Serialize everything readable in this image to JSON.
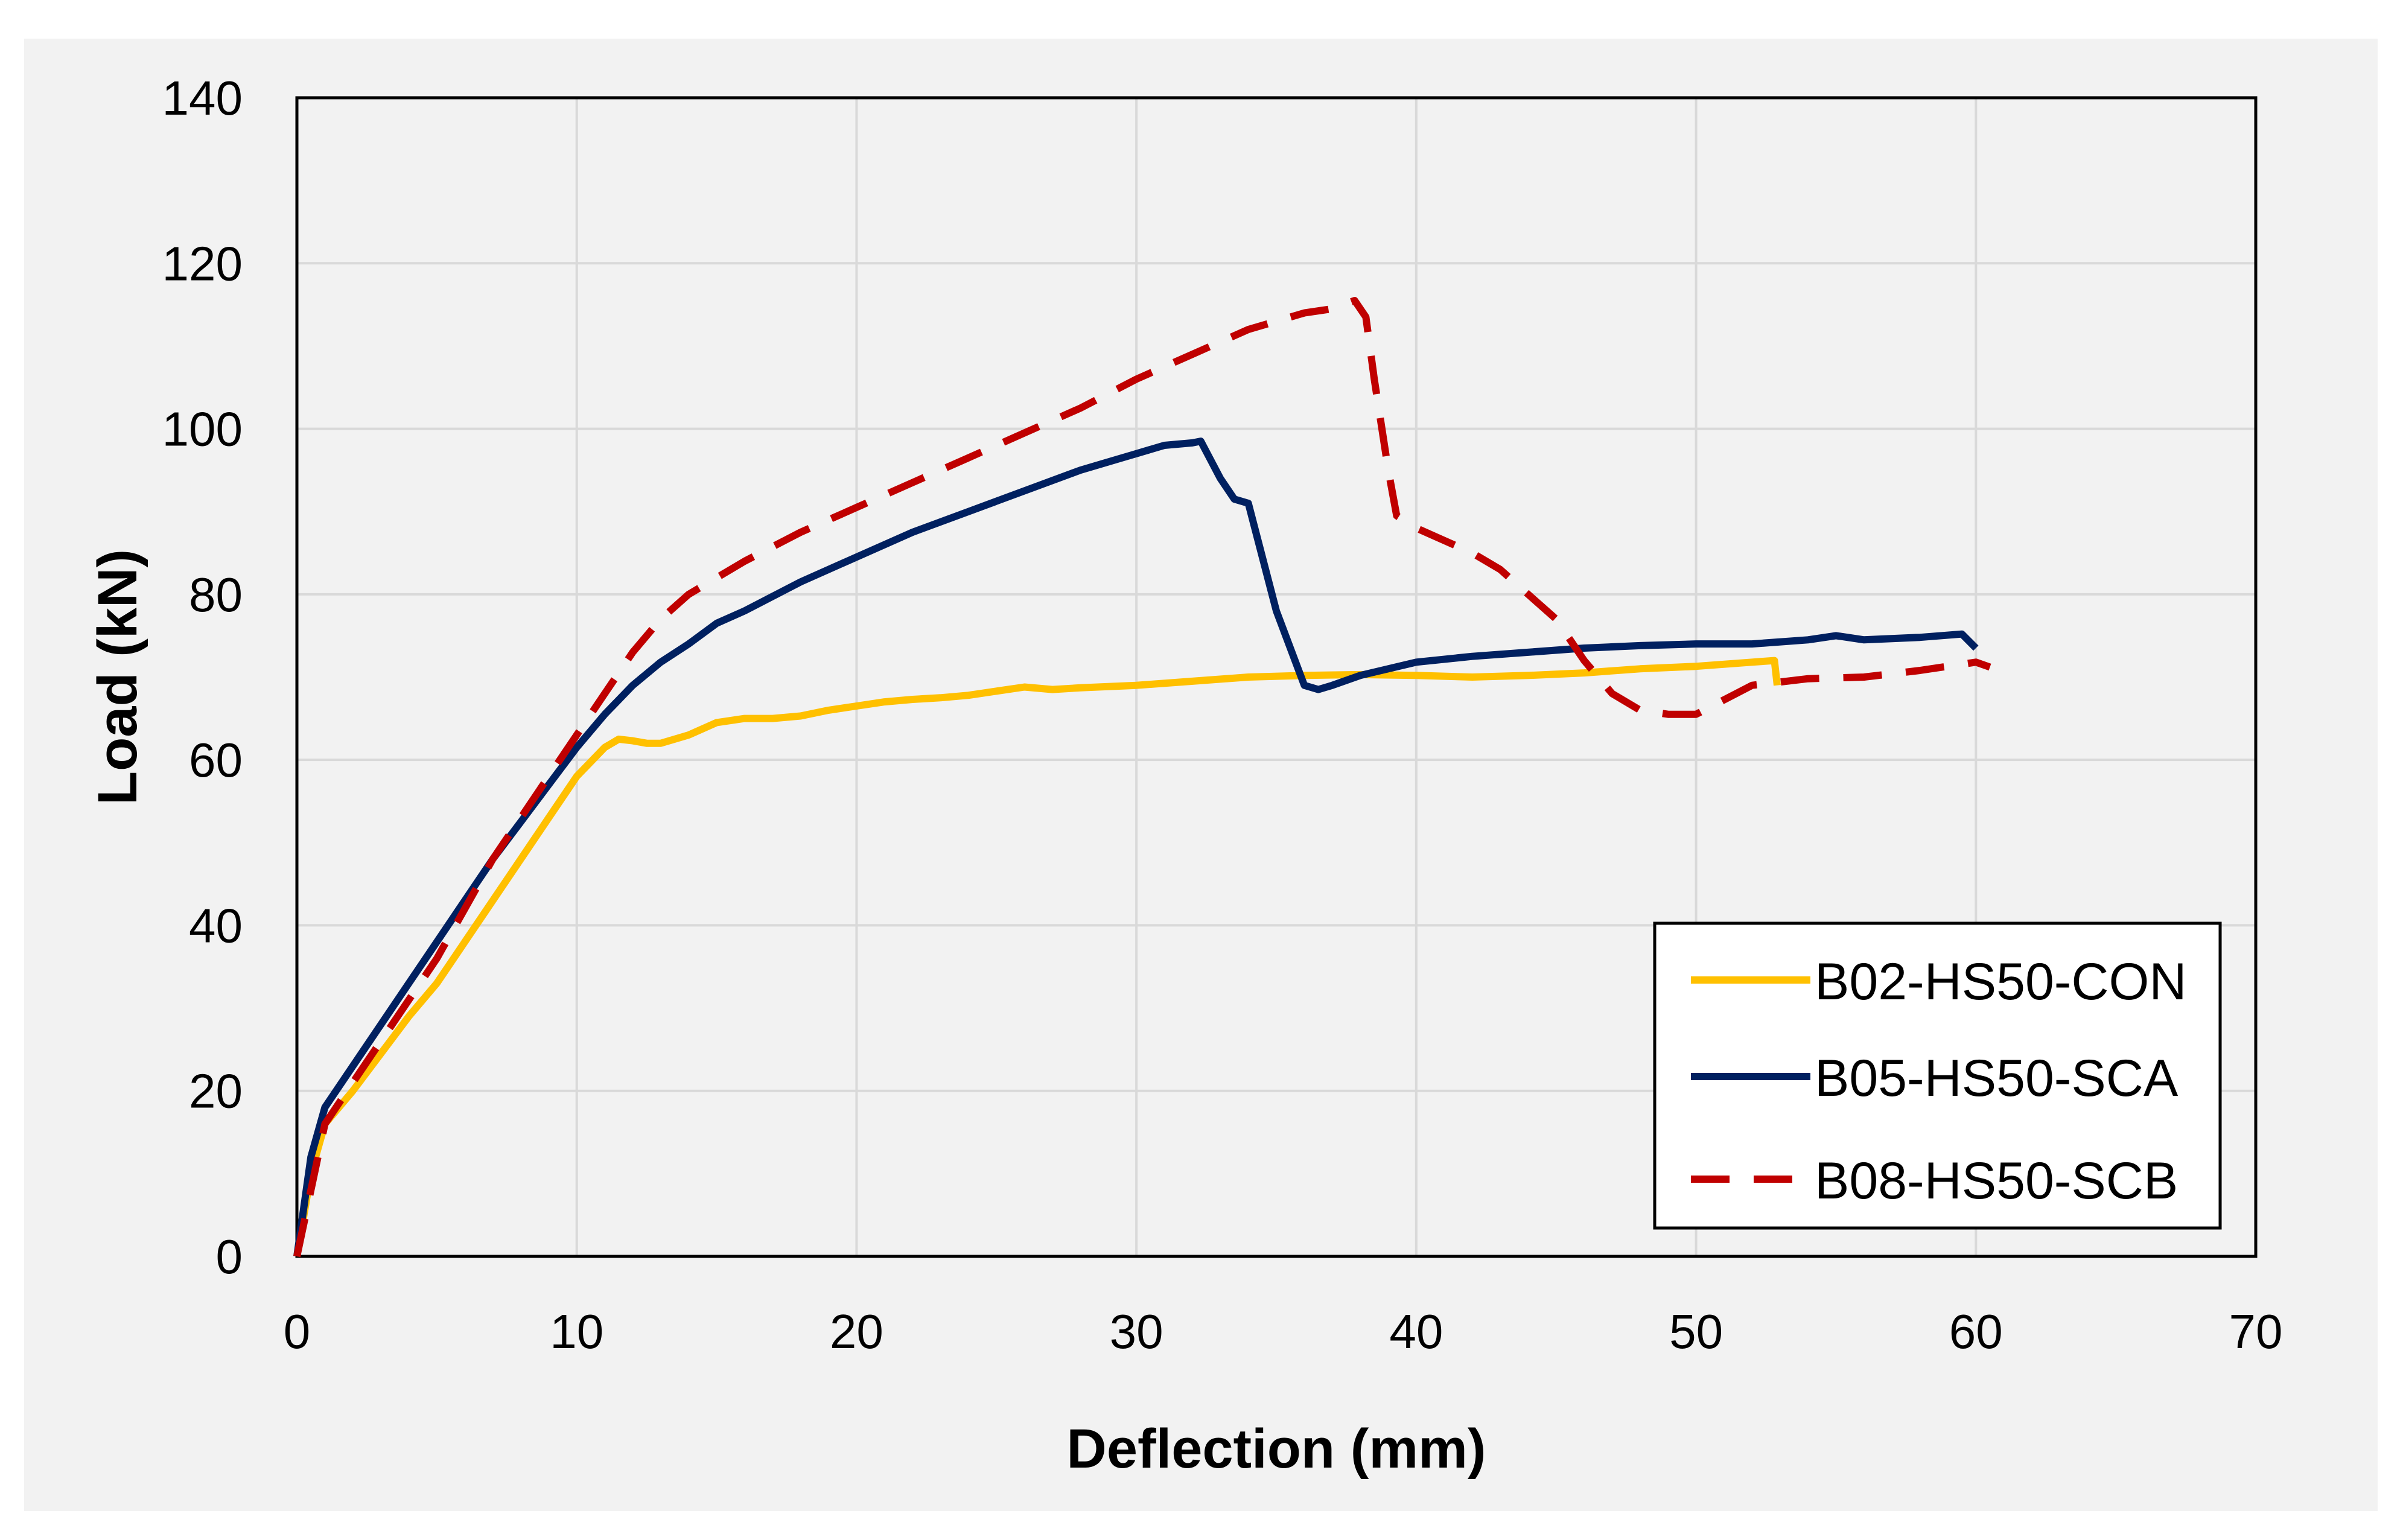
{
  "chart_data": {
    "type": "line",
    "title": "",
    "xlabel": "Deflection (mm)",
    "ylabel": "Load (kN)",
    "xlim": [
      0,
      70
    ],
    "ylim": [
      0,
      140
    ],
    "xticks": [
      0,
      10,
      20,
      30,
      40,
      50,
      60,
      70
    ],
    "yticks": [
      0,
      20,
      40,
      60,
      80,
      100,
      120,
      140
    ],
    "xtick_labels": [
      "0",
      "10",
      "20",
      "30",
      "40",
      "50",
      "60",
      "70"
    ],
    "ytick_labels": [
      "0",
      "20",
      "40",
      "60",
      "80",
      "100",
      "120",
      "140"
    ],
    "grid": true,
    "legend_position": "bottom-right",
    "series": [
      {
        "name": "B02-HS50-CON",
        "color": "#FFC000",
        "style": "solid",
        "x": [
          0,
          0.5,
          1,
          2,
          3,
          4,
          5,
          6,
          7,
          8,
          9,
          10,
          11,
          11.5,
          12,
          12.5,
          13,
          14,
          15,
          16,
          17,
          18,
          19,
          20,
          21,
          22,
          23,
          24,
          25,
          26,
          27,
          28,
          30,
          32,
          34,
          36,
          38,
          40,
          42,
          44,
          46,
          48,
          50,
          52,
          52.8,
          52.9
        ],
        "y": [
          0,
          10,
          16,
          20,
          24.5,
          29,
          33,
          38,
          43,
          48,
          53,
          58,
          61.5,
          62.5,
          62.3,
          62,
          62,
          63,
          64.5,
          65,
          65,
          65.3,
          66,
          66.5,
          67,
          67.3,
          67.5,
          67.8,
          68.3,
          68.8,
          68.5,
          68.7,
          69,
          69.5,
          70,
          70.2,
          70.3,
          70.2,
          70,
          70.2,
          70.5,
          71,
          71.3,
          71.8,
          72,
          69
        ]
      },
      {
        "name": "B05-HS50-SCA",
        "color": "#002060",
        "style": "solid",
        "x": [
          0,
          0.5,
          1,
          2,
          3,
          4,
          5,
          6,
          7,
          8,
          9,
          10,
          11,
          12,
          13,
          14,
          15,
          16,
          18,
          20,
          22,
          24,
          26,
          28,
          30,
          31,
          32,
          32.3,
          33,
          33.5,
          34,
          35,
          36,
          36.5,
          37,
          38,
          39,
          40,
          42,
          44,
          46,
          48,
          50,
          52,
          54,
          55,
          56,
          58,
          59.5,
          60
        ],
        "y": [
          0,
          12,
          18,
          23,
          28,
          33,
          38,
          43,
          48,
          52.5,
          57,
          61.5,
          65.5,
          69,
          71.8,
          74,
          76.5,
          78,
          81.5,
          84.5,
          87.5,
          90,
          92.5,
          95,
          97,
          98,
          98.3,
          98.5,
          94,
          91.5,
          91,
          78,
          69,
          68.5,
          69,
          70.2,
          71,
          71.8,
          72.5,
          73,
          73.5,
          73.8,
          74,
          74,
          74.5,
          75,
          74.5,
          74.8,
          75.2,
          73.5
        ]
      },
      {
        "name": "B08-HS50-SCB",
        "color": "#C00000",
        "style": "dashed",
        "x": [
          0,
          0.5,
          1,
          2,
          3,
          4,
          5,
          6,
          7,
          8,
          9,
          10,
          11,
          12,
          13,
          14,
          16,
          18,
          20,
          22,
          24,
          26,
          28,
          30,
          32,
          34,
          36,
          37,
          37.8,
          38.2,
          38.5,
          39,
          39.3,
          40,
          42,
          43,
          44,
          45,
          46,
          47,
          48,
          49,
          50,
          52,
          54,
          56,
          58,
          60,
          60.5
        ],
        "y": [
          0,
          8,
          16,
          21,
          26,
          31,
          36,
          42,
          48,
          53,
          58,
          63,
          68,
          73,
          77,
          80,
          84,
          87.5,
          90.5,
          93.5,
          96.5,
          99.5,
          102.5,
          106,
          109,
          112,
          114,
          114.5,
          115.5,
          113.5,
          106,
          95,
          89.5,
          88,
          85,
          83,
          80,
          77,
          72,
          68,
          66,
          65.5,
          65.5,
          69,
          69.8,
          70,
          70.8,
          71.8,
          71.2
        ]
      }
    ]
  }
}
